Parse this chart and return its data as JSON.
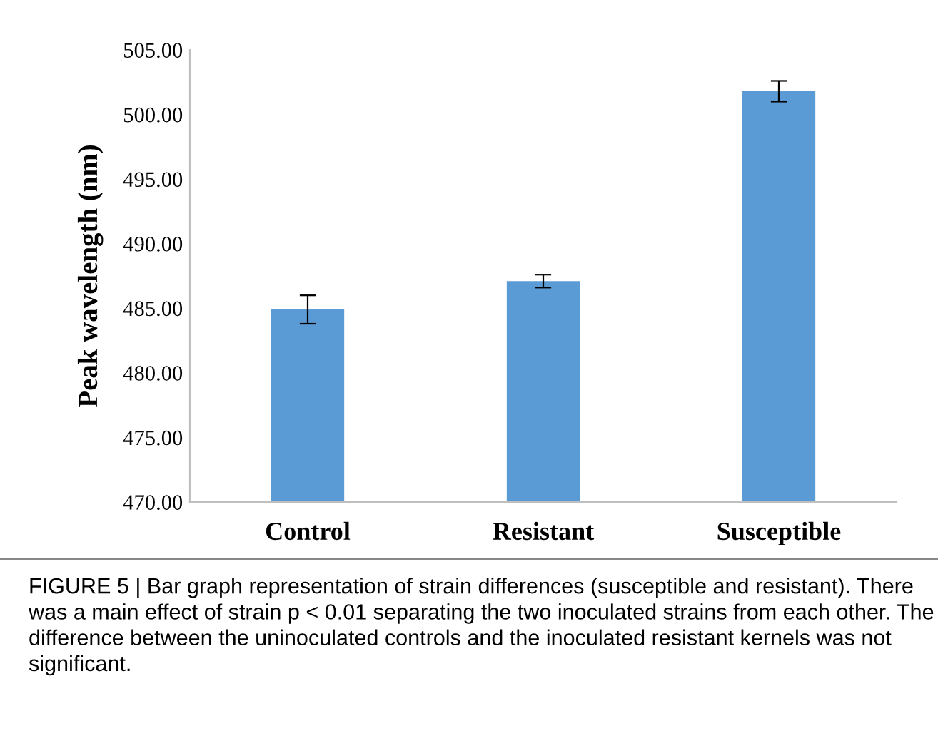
{
  "chart_data": {
    "type": "bar",
    "ylabel": "Peak wavelength (nm)",
    "categories": [
      "Control",
      "Resistant",
      "Susceptible"
    ],
    "values": [
      484.9,
      487.1,
      501.8
    ],
    "errors": [
      1.1,
      0.5,
      0.8
    ],
    "color": "#5b9bd5",
    "ylim": [
      470,
      505
    ],
    "yticks": [
      {
        "value": 470,
        "label": "470.00"
      },
      {
        "value": 475,
        "label": "475.00"
      },
      {
        "value": 480,
        "label": "480.00"
      },
      {
        "value": 485,
        "label": "485.00"
      },
      {
        "value": 490,
        "label": "490.00"
      },
      {
        "value": 495,
        "label": "495.00"
      },
      {
        "value": 500,
        "label": "500.00"
      },
      {
        "value": 505,
        "label": "505.00"
      }
    ],
    "grid": false,
    "annotations": [
      "FIGURE 5 | Bar graph representation of strain differences (susceptible and resistant). There was a main effect of strain p < 0.01 separating the two inoculated strains from each other. The difference between the uninoculated controls and the inoculated resistant kernels was not significant."
    ]
  }
}
